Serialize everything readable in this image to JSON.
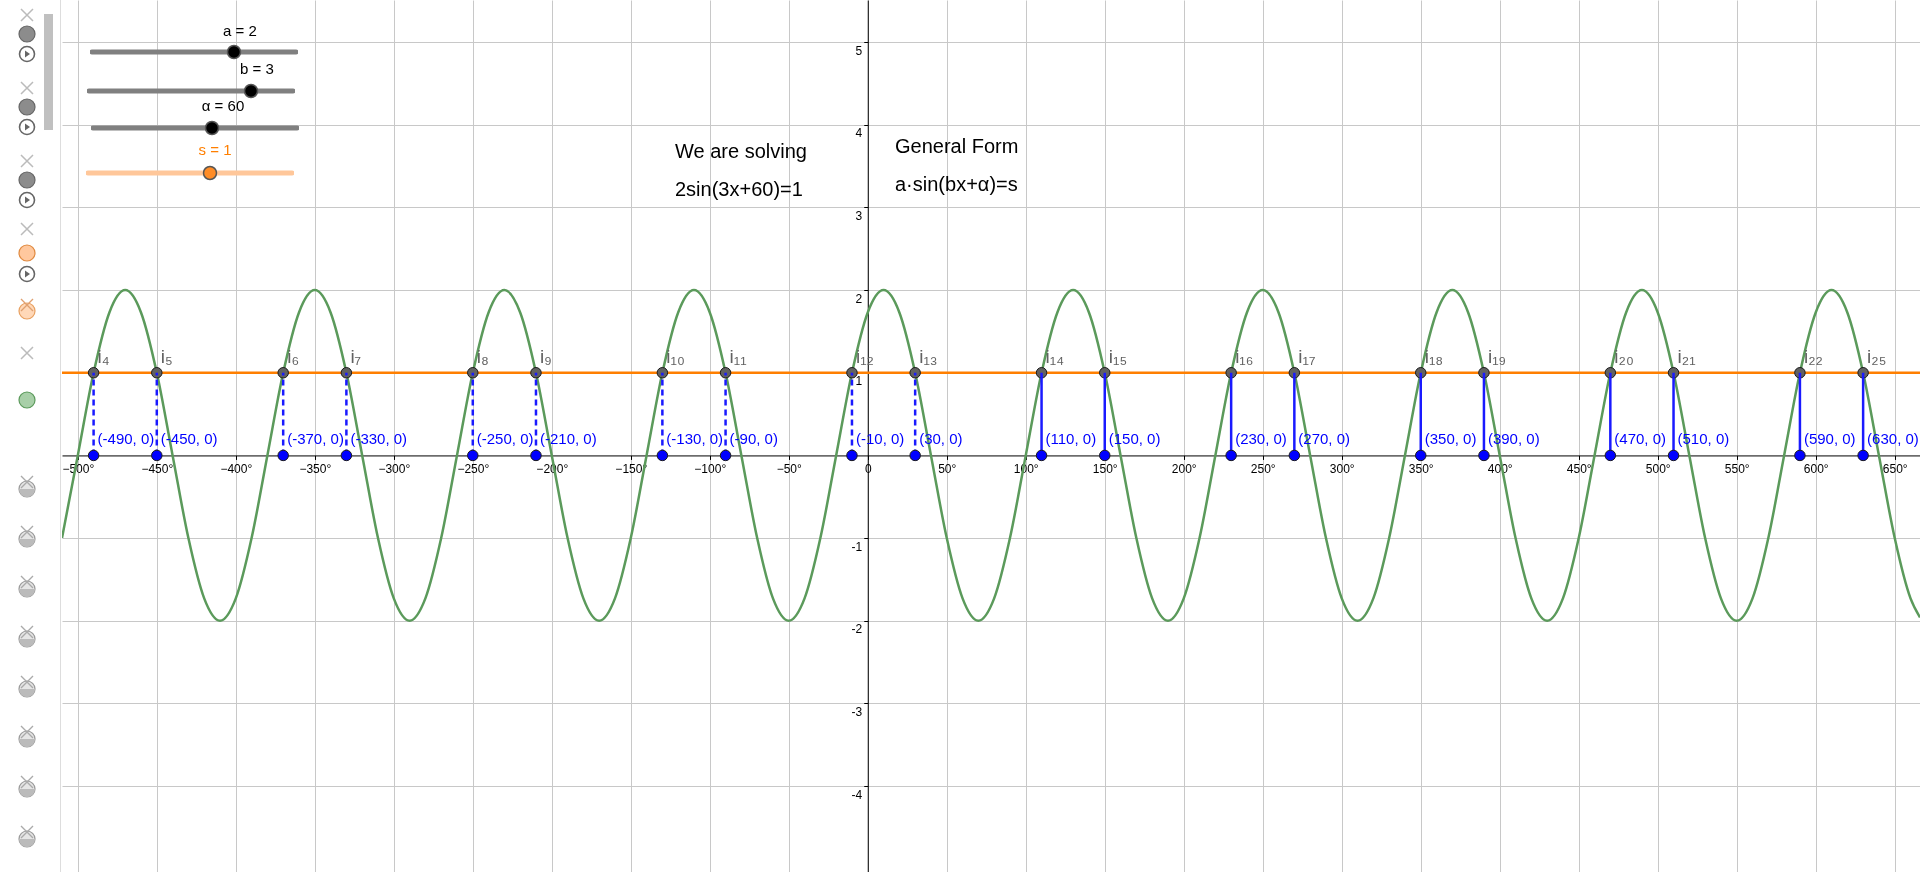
{
  "chart_data": {
    "type": "line",
    "xlim": [
      -510,
      666
    ],
    "ylim": [
      -5.04,
      5.51
    ],
    "xticks": [
      {
        "value": -500,
        "label": "−500°"
      },
      {
        "value": -450,
        "label": "−450°"
      },
      {
        "value": -400,
        "label": "−400°"
      },
      {
        "value": -350,
        "label": "−350°"
      },
      {
        "value": -300,
        "label": "−300°"
      },
      {
        "value": -250,
        "label": "−250°"
      },
      {
        "value": -200,
        "label": "−200°"
      },
      {
        "value": -150,
        "label": "−150°"
      },
      {
        "value": -100,
        "label": "−100°"
      },
      {
        "value": -50,
        "label": "−50°"
      },
      0,
      {
        "value": 50,
        "label": "50°"
      },
      {
        "value": 100,
        "label": "100°"
      },
      {
        "value": 150,
        "label": "150°"
      },
      {
        "value": 200,
        "label": "200°"
      },
      {
        "value": 250,
        "label": "250°"
      },
      {
        "value": 300,
        "label": "300°"
      },
      {
        "value": 350,
        "label": "350°"
      },
      {
        "value": 400,
        "label": "400°"
      },
      {
        "value": 450,
        "label": "450°"
      },
      {
        "value": 500,
        "label": "500°"
      },
      {
        "value": 550,
        "label": "550°"
      },
      {
        "value": 600,
        "label": "600°"
      },
      {
        "value": 650,
        "label": "650°"
      }
    ],
    "yticks": [
      -4,
      -3,
      -2,
      -1,
      1,
      2,
      3,
      4,
      5
    ],
    "grid": true,
    "annotations": [
      "a = 2",
      "b = 3",
      "α = 60",
      "s = 1",
      "We are solving",
      "2sin(3x+60)=1",
      "General Form",
      "a·sin(bx+α)=s"
    ],
    "series": [
      {
        "type": "line",
        "color": "#5b9a5b",
        "x": [
          -510,
          -500,
          -490,
          -480,
          -470,
          -460,
          -450,
          -440,
          -430,
          -420,
          -410,
          -400,
          -390,
          -380,
          -370,
          -360,
          -350,
          -340,
          -330,
          -320,
          -310,
          -300,
          -290,
          -280,
          -270,
          -260,
          -250,
          -240,
          -230,
          -220,
          -210,
          -200,
          -190,
          -180,
          -170,
          -160,
          -150,
          -140,
          -130,
          -120,
          -110,
          -100,
          -90,
          -80,
          -70,
          -60,
          -50,
          -40,
          -30,
          -20,
          -10,
          0,
          10,
          20,
          30,
          40,
          50,
          60,
          70,
          80,
          90,
          100,
          110,
          120,
          130,
          140,
          150,
          160,
          170,
          180,
          190,
          200,
          210,
          220,
          230,
          240,
          250,
          260,
          270,
          280,
          290,
          300,
          310,
          320,
          330,
          340,
          350,
          360,
          370,
          380,
          390,
          400,
          410,
          420,
          430,
          440,
          450,
          460,
          470,
          480,
          490,
          500,
          510,
          520,
          530,
          540,
          550,
          560,
          570,
          580,
          590,
          600,
          610,
          620,
          630,
          640,
          650,
          660,
          666
        ],
        "values": [
          -1,
          0,
          1,
          1.73,
          2,
          1.73,
          1,
          0,
          -1,
          -1.73,
          -2,
          -1.73,
          -1,
          0,
          1,
          1.73,
          2,
          1.73,
          1,
          0,
          -1,
          -1.73,
          -2,
          -1.73,
          -1,
          0,
          1,
          1.73,
          2,
          1.73,
          1,
          0,
          -1,
          -1.73,
          -2,
          -1.73,
          -1,
          0,
          1,
          1.73,
          2,
          1.73,
          1,
          0,
          -1,
          -1.73,
          -2,
          -1.73,
          -1,
          0,
          1,
          1.73,
          2,
          1.73,
          1,
          0,
          -1,
          -1.73,
          -2,
          -1.73,
          -1,
          0,
          1,
          1.73,
          2,
          1.73,
          1,
          0,
          -1,
          -1.73,
          -2,
          -1.73,
          -1,
          0,
          1,
          1.73,
          2,
          1.73,
          1,
          0,
          -1,
          -1.73,
          -2,
          -1.73,
          -1,
          0,
          1,
          1.73,
          2,
          1.73,
          1,
          0,
          -1,
          -1.73,
          -2,
          -1.73,
          -1,
          0,
          1,
          1.73,
          2,
          1.73,
          1,
          0,
          -1,
          -1.73,
          -2,
          -1.73,
          -1,
          0,
          1,
          1.73,
          2,
          1.73,
          1,
          0,
          -1,
          -1.73,
          -1.96
        ]
      },
      {
        "type": "line",
        "color": "#ff7f00",
        "x": [
          -510,
          666
        ],
        "values": [
          1,
          1
        ]
      },
      {
        "type": "scatter",
        "color": "#616161",
        "marker": "circle",
        "x": [
          -490,
          -450,
          -370,
          -330,
          -250,
          -210,
          -130,
          -90,
          -10,
          30,
          110,
          150,
          230,
          270,
          350,
          390,
          470,
          510,
          590,
          630
        ],
        "values": [
          1,
          1,
          1,
          1,
          1,
          1,
          1,
          1,
          1,
          1,
          1,
          1,
          1,
          1,
          1,
          1,
          1,
          1,
          1,
          1
        ],
        "value_labels": [
          "i₄",
          "i₅",
          "i₆",
          "i₇",
          "i₈",
          "i₉",
          "i₁₀",
          "i₁₁",
          "i₁₂",
          "i₁₃",
          "i₁₄",
          "i₁₅",
          "i₁₆",
          "i₁₇",
          "i₁₈",
          "i₁₉",
          "i₂₀",
          "i₂₁",
          "i₂₂",
          "i₂₅"
        ]
      },
      {
        "type": "scatter",
        "color": "#0000ff",
        "marker": "circle",
        "line_style": "dashed",
        "x": [
          -490,
          -450,
          -370,
          -330,
          -250,
          -210,
          -130,
          -90,
          -10,
          30
        ],
        "values": [
          0,
          0,
          0,
          0,
          0,
          0,
          0,
          0,
          0,
          0
        ],
        "errors": [
          [
            0,
            1
          ],
          [
            0,
            1
          ],
          [
            0,
            1
          ],
          [
            0,
            1
          ],
          [
            0,
            1
          ],
          [
            0,
            1
          ],
          [
            0,
            1
          ],
          [
            0,
            1
          ],
          [
            0,
            1
          ],
          [
            0,
            1
          ]
        ],
        "value_labels": [
          "(-490, 0)",
          "(-450, 0)",
          "(-370, 0)",
          "(-330, 0)",
          "(-250, 0)",
          "(-210, 0)",
          "(-130, 0)",
          "(-90, 0)",
          "(-10, 0)",
          "(30, 0)"
        ]
      },
      {
        "type": "scatter",
        "color": "#0000ff",
        "marker": "circle",
        "line_style": "solid",
        "x": [
          110,
          150,
          230,
          270,
          350,
          390,
          470,
          510,
          590,
          630
        ],
        "values": [
          0,
          0,
          0,
          0,
          0,
          0,
          0,
          0,
          0,
          0
        ],
        "errors": [
          [
            0,
            1
          ],
          [
            0,
            1
          ],
          [
            0,
            1
          ],
          [
            0,
            1
          ],
          [
            0,
            1
          ],
          [
            0,
            1
          ],
          [
            0,
            1
          ],
          [
            0,
            1
          ],
          [
            0,
            1
          ],
          [
            0,
            1
          ]
        ],
        "value_labels": [
          "(110, 0)",
          "(150, 0)",
          "(230, 0)",
          "(270, 0)",
          "(350, 0)",
          "(390, 0)",
          "(470, 0)",
          "(510, 0)",
          "(590, 0)",
          "(630, 0)"
        ]
      }
    ]
  }
}
